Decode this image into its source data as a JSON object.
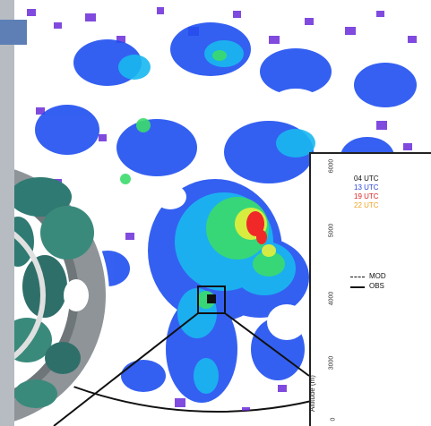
{
  "chart_data": {
    "type": "line",
    "ylabel": "Altitude (m)",
    "y_ticks": [
      "6000",
      "5000",
      "4000",
      "3000",
      "0"
    ],
    "series_legend": [
      {
        "name": "04 UTC",
        "color": "#111111"
      },
      {
        "name": "13 UTC",
        "color": "#2a44d8"
      },
      {
        "name": "19 UTC",
        "color": "#e02020"
      },
      {
        "name": "22 UTC",
        "color": "#f0a020"
      }
    ],
    "style_legend": [
      {
        "name": "MOD",
        "style": "dashed"
      },
      {
        "name": "OBS",
        "style": "solid"
      }
    ]
  },
  "colors": {
    "purple": "#6a2bd9",
    "blue": "#1f4ff0",
    "cyan": "#19b8f0",
    "green": "#3bdc6c",
    "yellow": "#e8f03a",
    "red": "#f02828"
  }
}
